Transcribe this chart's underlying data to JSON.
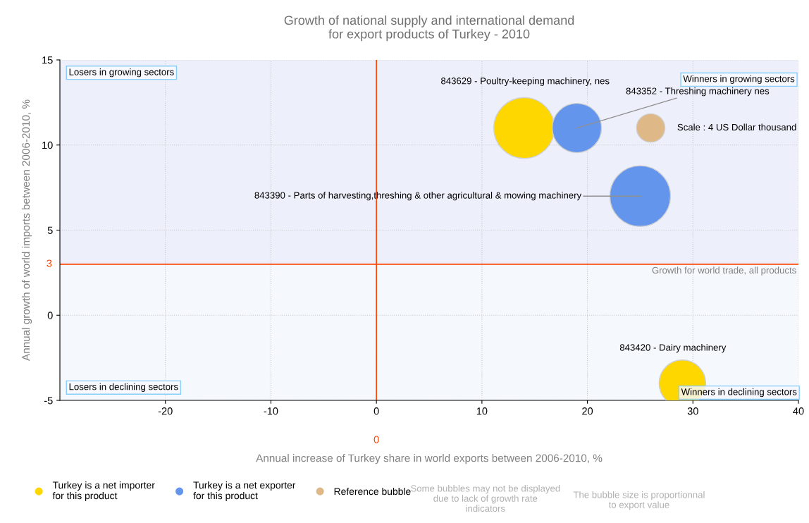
{
  "chart_data": {
    "type": "bubble",
    "title": "Growth of national supply and international demand\nfor export products of Turkey - 2010",
    "xlabel": "Annual increase of Turkey share in world exports between 2006-2010, %",
    "ylabel": "Annual growth of world imports between 2006-2010, %",
    "xlim": [
      -30,
      40
    ],
    "xticks": [
      -20,
      -10,
      0,
      10,
      20,
      30,
      40
    ],
    "ylim": [
      -5,
      15
    ],
    "yticks": [
      -5,
      0,
      5,
      10,
      15
    ],
    "grid": true,
    "legend": "bottom",
    "series": [
      {
        "name": "Turkey is a net importer\nfor this product",
        "color": "#ffd700",
        "x": [
          14,
          29
        ],
        "values": [
          11,
          -4
        ],
        "sizes": [
          1,
          0.59
        ]
      },
      {
        "name": "Turkey is a net exporter\nfor this product",
        "color": "#6495ed",
        "x": [
          19,
          25
        ],
        "values": [
          11,
          7
        ],
        "sizes": [
          0.66,
          1
        ]
      },
      {
        "name": "Reference bubble",
        "color": "#deb887",
        "x": [
          26
        ],
        "values": [
          11
        ],
        "sizes": [
          0.22
        ]
      }
    ],
    "ref_lines": [
      {
        "axis": "y",
        "value": 3,
        "label": "3",
        "color": "#ff4500"
      },
      {
        "axis": "x",
        "value": 0,
        "label": "0",
        "color": "#ff4500"
      }
    ],
    "bands": [
      {
        "axis": "y",
        "from": 3,
        "to": 15,
        "color": "#edf0fb"
      }
    ],
    "annotations": [
      "Losers in growing sectors",
      "Winners in growing sectors",
      "Losers in declining sectors",
      "Winners in declining sectors",
      "843629 - Poultry-keeping machinery, nes",
      {
        "text": "843352 - Threshing machinery nes",
        "x": 19,
        "y": 11
      },
      {
        "text": "Scale : 4 US Dollar thousand",
        "x": 26,
        "y": 11
      },
      {
        "text": "843390 - Parts of harvesting,threshing & other agricultural & mowing machinery",
        "x": 25,
        "y": 7
      },
      "843420 - Dairy machinery",
      {
        "text": "Growth for world trade, all products",
        "x": 40,
        "y": 3
      },
      "Some bubbles may not be displayed\ndue to lack of growth rate\nindicators",
      "The bubble size is proportionnal\nto export value"
    ]
  }
}
